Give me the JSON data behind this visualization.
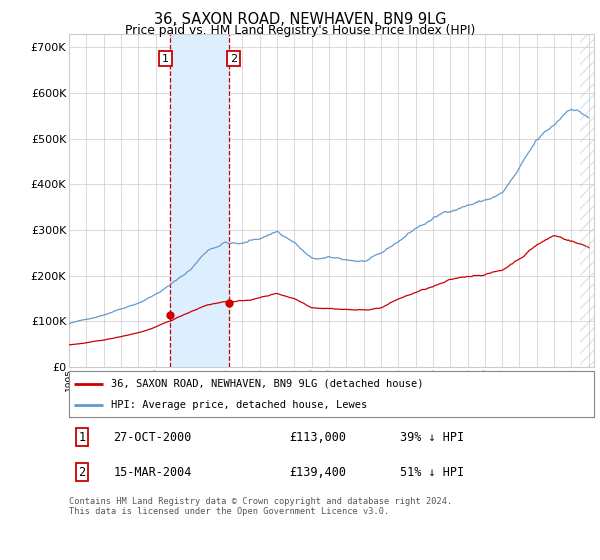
{
  "title": "36, SAXON ROAD, NEWHAVEN, BN9 9LG",
  "subtitle": "Price paid vs. HM Land Registry's House Price Index (HPI)",
  "ytick_values": [
    0,
    100000,
    200000,
    300000,
    400000,
    500000,
    600000,
    700000
  ],
  "ylim": [
    0,
    730000
  ],
  "legend_line1": "36, SAXON ROAD, NEWHAVEN, BN9 9LG (detached house)",
  "legend_line2": "HPI: Average price, detached house, Lewes",
  "transaction1_date": "27-OCT-2000",
  "transaction1_price": "£113,000",
  "transaction1_hpi": "39% ↓ HPI",
  "transaction1_price_val": 113000,
  "transaction2_date": "15-MAR-2004",
  "transaction2_price": "£139,400",
  "transaction2_hpi": "51% ↓ HPI",
  "transaction2_price_val": 139400,
  "footer": "Contains HM Land Registry data © Crown copyright and database right 2024.\nThis data is licensed under the Open Government Licence v3.0.",
  "transaction1_x": 2000.82,
  "transaction2_x": 2004.21,
  "hpi_color": "#6699cc",
  "price_color": "#cc0000",
  "vline_color": "#cc0000",
  "shade_color": "#ddeeff",
  "grid_color": "#cccccc",
  "xlim_left": 1995.0,
  "xlim_right": 2025.3
}
